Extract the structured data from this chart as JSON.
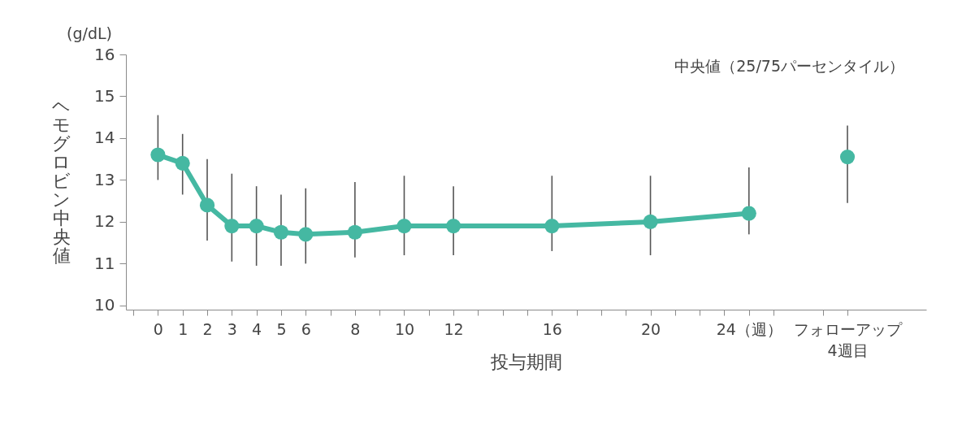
{
  "chart_data": {
    "type": "line",
    "xlabel": "投与期間",
    "ylabel": "ヘモグロビン中央値",
    "annotations": [
      "(g/dL)",
      "中央値（25/75パーセンタイル）"
    ],
    "xlim": [
      -1.3,
      31.2
    ],
    "ylim": [
      9.9,
      16
    ],
    "xticks": [
      {
        "value": -1,
        "label": null
      },
      0,
      1,
      2,
      3,
      4,
      5,
      6,
      {
        "value": 7,
        "label": null
      },
      8,
      {
        "value": 9,
        "label": null
      },
      10,
      {
        "value": 11,
        "label": null
      },
      12,
      {
        "value": 13,
        "label": null
      },
      {
        "value": 14,
        "label": null
      },
      {
        "value": 15,
        "label": null
      },
      16,
      {
        "value": 17,
        "label": null
      },
      {
        "value": 18,
        "label": null
      },
      {
        "value": 19,
        "label": null
      },
      20,
      {
        "value": 21,
        "label": null
      },
      {
        "value": 22,
        "label": null
      },
      {
        "value": 23,
        "label": null
      },
      {
        "value": 24,
        "label": "24（週）"
      },
      {
        "value": 25,
        "label": null
      },
      {
        "value": 27,
        "label": null
      },
      {
        "value": 28,
        "label": "フォローアップ\n4週目"
      }
    ],
    "yticks": [
      10,
      11,
      12,
      13,
      14,
      15,
      16
    ],
    "marker": "circle",
    "grid": false,
    "line_style": "solid",
    "series": [
      {
        "color": "#45b8a2",
        "x": [
          0,
          1,
          2,
          3,
          4,
          5,
          6,
          8,
          10,
          12,
          16,
          20,
          24
        ],
        "values": [
          13.6,
          13.4,
          12.4,
          11.9,
          11.9,
          11.75,
          11.7,
          11.75,
          11.9,
          11.9,
          11.9,
          12.0,
          12.2
        ],
        "errors": [
          [
            13.0,
            14.55
          ],
          [
            12.65,
            14.1
          ],
          [
            11.55,
            13.5
          ],
          [
            11.05,
            13.15
          ],
          [
            10.95,
            12.85
          ],
          [
            10.95,
            12.65
          ],
          [
            11.0,
            12.8
          ],
          [
            11.15,
            12.95
          ],
          [
            11.2,
            13.1
          ],
          [
            11.2,
            12.85
          ],
          [
            11.3,
            13.1
          ],
          [
            11.2,
            13.1
          ],
          [
            11.7,
            13.3
          ]
        ]
      },
      {
        "type": "scatter",
        "color": "#45b8a2",
        "x": [
          28
        ],
        "values": [
          13.55
        ],
        "errors": [
          [
            12.45,
            14.3
          ]
        ]
      }
    ]
  }
}
